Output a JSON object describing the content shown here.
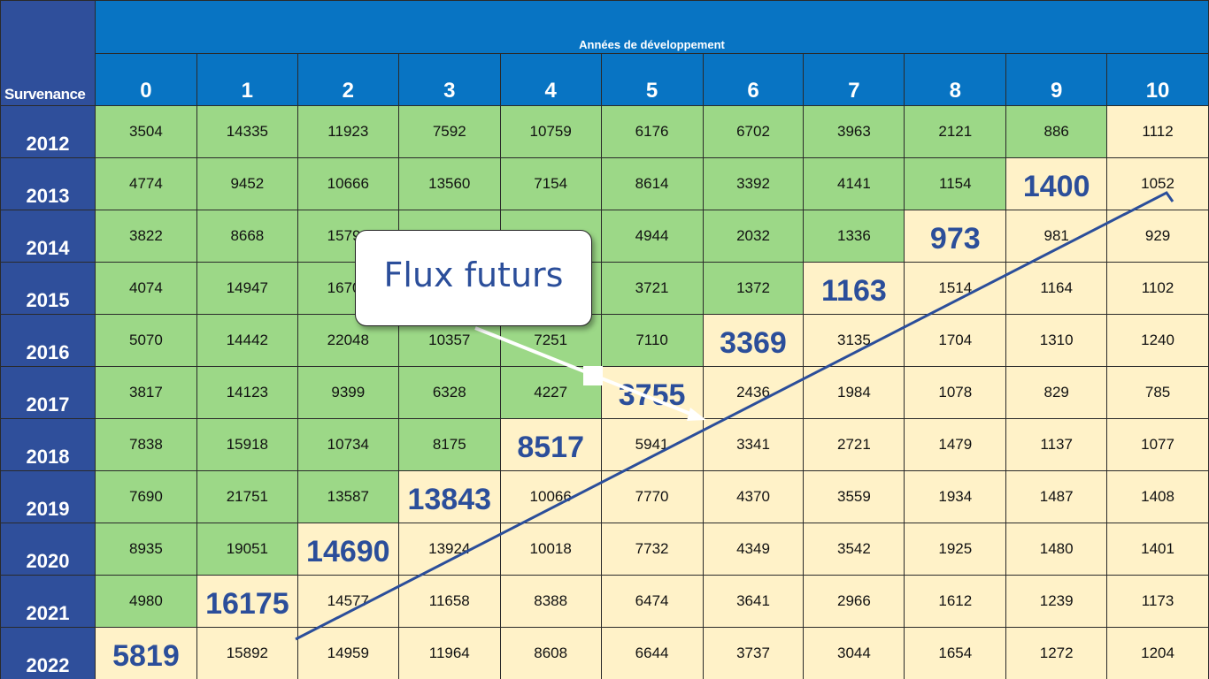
{
  "header": {
    "corner_label": "Survenance",
    "group_label": "Années de développement",
    "dev_years": [
      "0",
      "1",
      "2",
      "3",
      "4",
      "5",
      "6",
      "7",
      "8",
      "9",
      "10"
    ]
  },
  "rows": [
    {
      "year": "2012",
      "cells": [
        "3504",
        "14335",
        "11923",
        "7592",
        "10759",
        "6176",
        "6702",
        "3963",
        "2121",
        "886",
        "1112"
      ]
    },
    {
      "year": "2013",
      "cells": [
        "4774",
        "9452",
        "10666",
        "13560",
        "7154",
        "8614",
        "3392",
        "4141",
        "1154",
        "1400",
        "1052"
      ]
    },
    {
      "year": "2014",
      "cells": [
        "3822",
        "8668",
        "15799",
        "",
        "",
        "4944",
        "2032",
        "1336",
        "973",
        "981",
        "929"
      ]
    },
    {
      "year": "2015",
      "cells": [
        "4074",
        "14947",
        "16703",
        "",
        "",
        "3721",
        "1372",
        "1163",
        "1514",
        "1164",
        "1102"
      ]
    },
    {
      "year": "2016",
      "cells": [
        "5070",
        "14442",
        "22048",
        "10357",
        "7251",
        "7110",
        "3369",
        "3135",
        "1704",
        "1310",
        "1240"
      ]
    },
    {
      "year": "2017",
      "cells": [
        "3817",
        "14123",
        "9399",
        "6328",
        "4227",
        "3755",
        "2436",
        "1984",
        "1078",
        "829",
        "785"
      ]
    },
    {
      "year": "2018",
      "cells": [
        "7838",
        "15918",
        "10734",
        "8175",
        "8517",
        "5941",
        "3341",
        "2721",
        "1479",
        "1137",
        "1077"
      ]
    },
    {
      "year": "2019",
      "cells": [
        "7690",
        "21751",
        "13587",
        "13843",
        "10066",
        "7770",
        "4370",
        "3559",
        "1934",
        "1487",
        "1408"
      ]
    },
    {
      "year": "2020",
      "cells": [
        "8935",
        "19051",
        "14690",
        "13924",
        "10018",
        "7732",
        "4349",
        "3542",
        "1925",
        "1480",
        "1401"
      ]
    },
    {
      "year": "2021",
      "cells": [
        "4980",
        "16175",
        "14577",
        "11658",
        "8388",
        "6474",
        "3641",
        "2966",
        "1612",
        "1239",
        "1173"
      ]
    },
    {
      "year": "2022",
      "cells": [
        "5819",
        "15892",
        "14959",
        "11964",
        "8608",
        "6644",
        "3737",
        "3044",
        "1654",
        "1272",
        "1204"
      ]
    }
  ],
  "callout": {
    "label": "Flux futurs"
  },
  "colors": {
    "observed": "#9cd887",
    "projected": "#fff2c8",
    "header_blue": "#0874c3",
    "row_header_blue": "#2f4f9b",
    "future_text": "#2b4e9a"
  }
}
